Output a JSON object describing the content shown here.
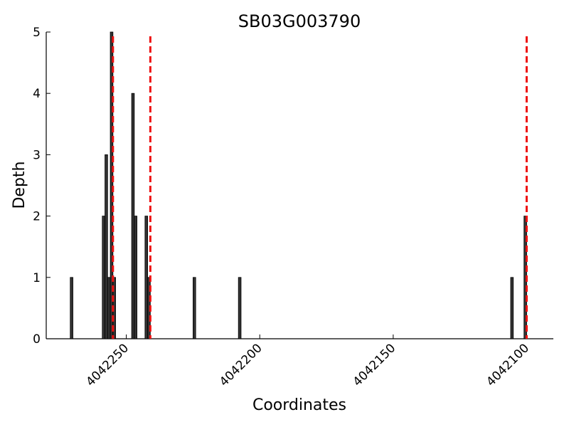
{
  "chart_data": {
    "type": "bar",
    "title": "SB03G003790",
    "x_label": "Coordinates",
    "y_label": "Depth",
    "x": [
      4042271,
      4042259,
      4042258,
      4042257,
      4042256,
      4042255,
      4042248,
      4042247,
      4042243,
      4042242,
      4042225,
      4042208,
      4042106,
      4042101
    ],
    "values": [
      1,
      2,
      3,
      1,
      5,
      1,
      4,
      2,
      2,
      1,
      1,
      1,
      1,
      2
    ],
    "color": "#333333",
    "vlines": [
      4042255,
      4042241,
      4042100
    ],
    "vline_color": "#ee1111",
    "xlim": [
      4042280,
      4042090
    ],
    "xticks": [
      4042250,
      4042200,
      4042150,
      4042100
    ],
    "ylim": [
      0,
      5
    ],
    "yticks": [
      0,
      1,
      2,
      3,
      4,
      5
    ],
    "grid": false
  }
}
